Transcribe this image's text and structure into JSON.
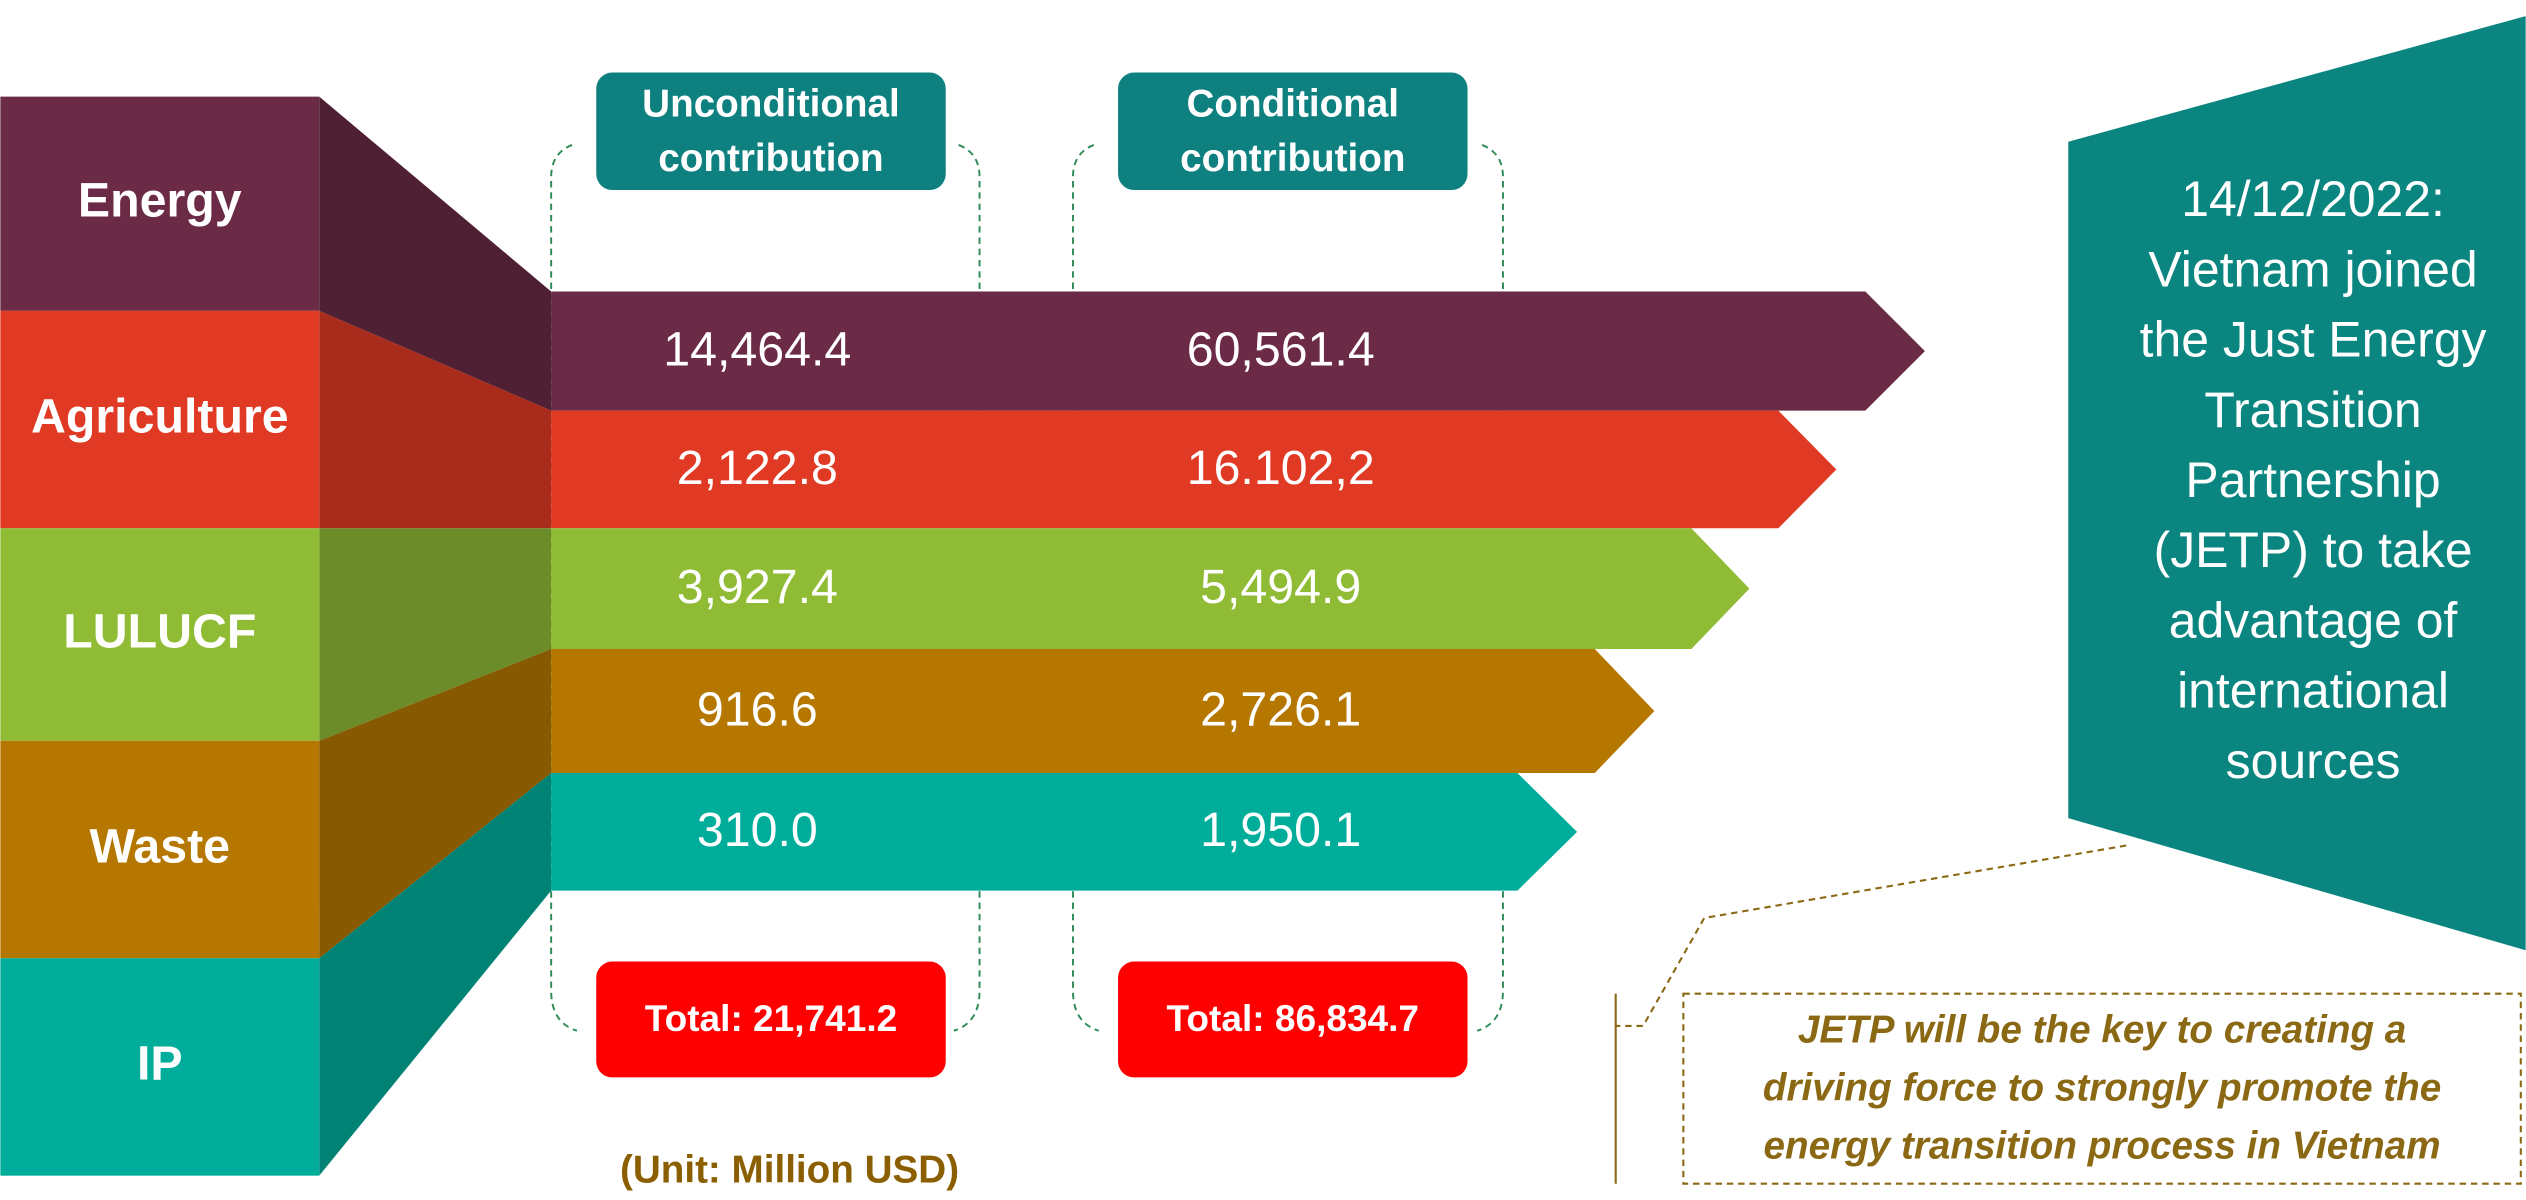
{
  "sectors": [
    "Energy",
    "Agriculture",
    "LULUCF",
    "Waste",
    "IP"
  ],
  "headers": {
    "unconditional": [
      "Unconditional",
      "contribution"
    ],
    "conditional": [
      "Conditional",
      "contribution"
    ]
  },
  "unconditional_values": [
    "14,464.4",
    "2,122.8",
    "3,927.4",
    "916.6",
    "310.0"
  ],
  "conditional_values": [
    "60,561.4",
    "16.102,2",
    "5,494.9",
    "2,726.1",
    "1,950.1"
  ],
  "totals": {
    "unconditional": "Total: 21,741.2",
    "conditional": "Total: 86,834.7"
  },
  "unit": "(Unit: Million USD)",
  "side_note": [
    "14/12/2022:",
    "Vietnam joined",
    "the Just Energy",
    "Transition",
    "Partnership",
    "(JETP) to take",
    "advantage of",
    "international",
    "sources"
  ],
  "quote": [
    "JETP will be the key to creating a",
    "driving force to strongly promote the",
    "energy transition process in Vietnam"
  ]
}
